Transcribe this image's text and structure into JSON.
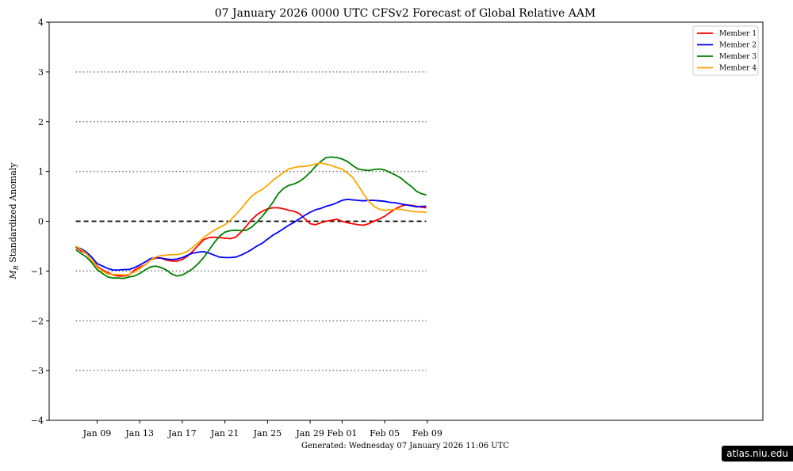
{
  "chart_data": {
    "type": "line",
    "title": "07  January  2026 0000 UTC   CFSv2 Forecast of Global Relative AAM",
    "ylabel": "M_R Standardized Anomaly",
    "ylabel_main": "M",
    "ylabel_sub": "R",
    "ylabel_rest": " Standardized Anomaly",
    "footer": "Generated: Wednesday  07  January  2026  11:06 UTC",
    "ylim": [
      -4,
      4
    ],
    "yticks": [
      -4,
      -3,
      -2,
      -1,
      0,
      1,
      2,
      3,
      4
    ],
    "ytick_labels": [
      "−4",
      "−3",
      "−2",
      "−1",
      "0",
      "1",
      "2",
      "3",
      "4"
    ],
    "xlim": [
      -2.5,
      64.5
    ],
    "xticks": [
      {
        "day": 2,
        "label": "Jan 09"
      },
      {
        "day": 6,
        "label": "Jan 13"
      },
      {
        "day": 10,
        "label": "Jan 17"
      },
      {
        "day": 14,
        "label": "Jan 21"
      },
      {
        "day": 18,
        "label": "Jan 25"
      },
      {
        "day": 22,
        "label": "Jan 29"
      },
      {
        "day": 25,
        "label": "Feb 01"
      },
      {
        "day": 29,
        "label": "Feb 05"
      },
      {
        "day": 33,
        "label": "Feb 09"
      }
    ],
    "grid": "dotted at y = -3, -2, -1, 1, 2, 3; dashed zero line",
    "legend_position": "top-right",
    "x_days_from_jan07": [
      0,
      0.5,
      1,
      1.5,
      2,
      2.5,
      3,
      3.5,
      4,
      4.5,
      5,
      5.5,
      6,
      6.5,
      7,
      7.5,
      8,
      8.5,
      9,
      9.5,
      10,
      10.5,
      11,
      11.5,
      12,
      12.5,
      13,
      13.5,
      14,
      14.5,
      15,
      15.5,
      16,
      16.5,
      17,
      17.5,
      18,
      18.5,
      19,
      19.5,
      20,
      20.5,
      21,
      21.5,
      22,
      22.5,
      23,
      23.5,
      24,
      24.5,
      25,
      25.5,
      26,
      26.5,
      27,
      27.5,
      28,
      28.5,
      29,
      29.5,
      30,
      30.5,
      31,
      31.5,
      32,
      32.5,
      32.9
    ],
    "series": [
      {
        "name": "Member 1",
        "color": "#ff0000",
        "values": [
          -0.52,
          -0.6,
          -0.65,
          -0.78,
          -0.9,
          -0.98,
          -1.03,
          -1.08,
          -1.1,
          -1.1,
          -1.08,
          -0.98,
          -0.92,
          -0.88,
          -0.78,
          -0.74,
          -0.74,
          -0.78,
          -0.8,
          -0.8,
          -0.77,
          -0.7,
          -0.6,
          -0.48,
          -0.37,
          -0.33,
          -0.32,
          -0.33,
          -0.34,
          -0.35,
          -0.32,
          -0.22,
          -0.1,
          0.03,
          0.13,
          0.2,
          0.25,
          0.27,
          0.27,
          0.25,
          0.22,
          0.2,
          0.15,
          0.05,
          -0.05,
          -0.07,
          -0.03,
          0.0,
          0.02,
          0.04,
          0.0,
          -0.03,
          -0.05,
          -0.07,
          -0.08,
          -0.05,
          0.0,
          0.05,
          0.1,
          0.18,
          0.25,
          0.3,
          0.33,
          0.32,
          0.3,
          0.28,
          0.27
        ]
      },
      {
        "name": "Member 2",
        "color": "#0000ff",
        "values": [
          -0.52,
          -0.55,
          -0.62,
          -0.72,
          -0.85,
          -0.9,
          -0.95,
          -0.98,
          -0.98,
          -0.97,
          -0.97,
          -0.93,
          -0.88,
          -0.82,
          -0.75,
          -0.73,
          -0.74,
          -0.76,
          -0.77,
          -0.76,
          -0.73,
          -0.68,
          -0.64,
          -0.62,
          -0.61,
          -0.64,
          -0.68,
          -0.72,
          -0.73,
          -0.73,
          -0.72,
          -0.68,
          -0.63,
          -0.57,
          -0.5,
          -0.44,
          -0.36,
          -0.28,
          -0.22,
          -0.15,
          -0.08,
          -0.02,
          0.05,
          0.12,
          0.18,
          0.23,
          0.26,
          0.3,
          0.33,
          0.37,
          0.42,
          0.44,
          0.43,
          0.42,
          0.41,
          0.42,
          0.42,
          0.41,
          0.4,
          0.38,
          0.37,
          0.35,
          0.33,
          0.31,
          0.29,
          0.3,
          0.3
        ]
      },
      {
        "name": "Member 3",
        "color": "#008000",
        "values": [
          -0.57,
          -0.65,
          -0.72,
          -0.83,
          -0.97,
          -1.05,
          -1.12,
          -1.14,
          -1.14,
          -1.15,
          -1.12,
          -1.1,
          -1.05,
          -0.98,
          -0.92,
          -0.9,
          -0.93,
          -0.98,
          -1.06,
          -1.1,
          -1.08,
          -1.02,
          -0.95,
          -0.85,
          -0.73,
          -0.58,
          -0.43,
          -0.3,
          -0.22,
          -0.19,
          -0.18,
          -0.19,
          -0.18,
          -0.12,
          -0.02,
          0.1,
          0.23,
          0.38,
          0.55,
          0.66,
          0.72,
          0.75,
          0.8,
          0.88,
          0.98,
          1.1,
          1.2,
          1.28,
          1.29,
          1.28,
          1.25,
          1.2,
          1.12,
          1.05,
          1.03,
          1.02,
          1.04,
          1.05,
          1.03,
          0.98,
          0.93,
          0.87,
          0.78,
          0.7,
          0.6,
          0.55,
          0.53
        ]
      },
      {
        "name": "Member 4",
        "color": "#ffa500",
        "values": [
          -0.5,
          -0.57,
          -0.65,
          -0.78,
          -0.92,
          -1.0,
          -1.06,
          -1.07,
          -1.07,
          -1.08,
          -1.07,
          -1.02,
          -0.95,
          -0.88,
          -0.78,
          -0.72,
          -0.69,
          -0.68,
          -0.67,
          -0.67,
          -0.65,
          -0.6,
          -0.52,
          -0.43,
          -0.33,
          -0.25,
          -0.18,
          -0.12,
          -0.07,
          0.02,
          0.13,
          0.25,
          0.38,
          0.5,
          0.58,
          0.64,
          0.72,
          0.82,
          0.9,
          0.98,
          1.05,
          1.08,
          1.1,
          1.1,
          1.12,
          1.15,
          1.17,
          1.15,
          1.12,
          1.08,
          1.05,
          0.97,
          0.88,
          0.72,
          0.55,
          0.4,
          0.3,
          0.24,
          0.22,
          0.23,
          0.24,
          0.24,
          0.22,
          0.2,
          0.19,
          0.19,
          0.18
        ]
      }
    ]
  },
  "watermark": "atlas.niu.edu"
}
